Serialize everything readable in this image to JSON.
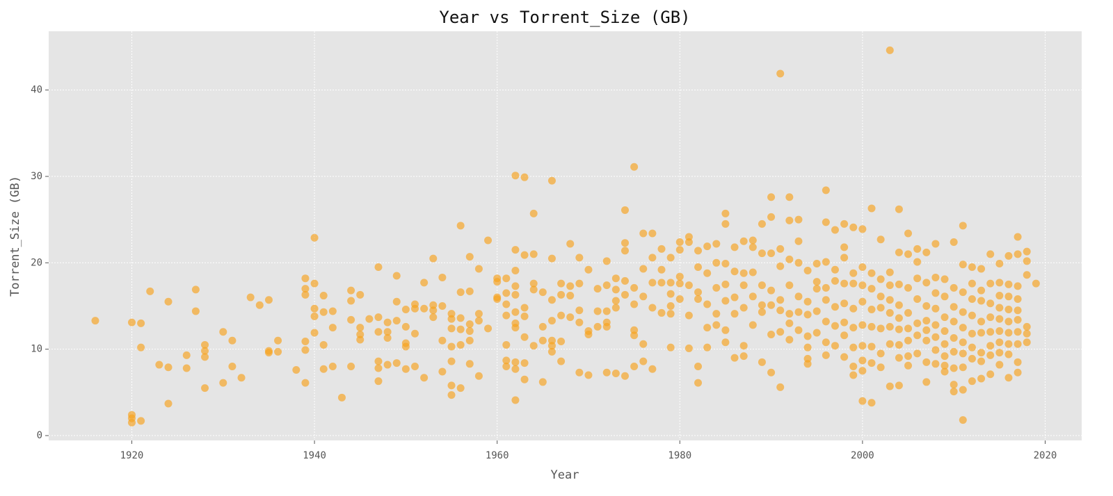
{
  "chart_data": {
    "type": "scatter",
    "title": "Year vs Torrent_Size (GB)",
    "x_label": "Year",
    "y_label": "Torrent_Size (GB)",
    "color": "#f7a21b",
    "grid": true,
    "xlim": [
      1910.9,
      2024.0
    ],
    "ylim": [
      -0.56,
      46.8
    ],
    "xticks": [
      1920,
      1940,
      1960,
      1980,
      2000,
      2020
    ],
    "yticks": [
      0,
      10,
      20,
      30,
      40
    ],
    "x": [
      1916,
      1920,
      1920,
      1920,
      1920,
      1921,
      1921,
      1921,
      1922,
      1923,
      1924,
      1924,
      1924,
      1926,
      1926,
      1927,
      1927,
      1928,
      1928,
      1928,
      1928,
      1930,
      1930,
      1931,
      1931,
      1932,
      1933,
      1934,
      1935,
      1935,
      1935,
      1936,
      1936,
      1938,
      1939,
      1939,
      1939,
      1939,
      1939,
      1939,
      1940,
      1940,
      1940,
      1940,
      1940,
      1941,
      1941,
      1941,
      1941,
      1942,
      1942,
      1942,
      1943,
      1944,
      1944,
      1944,
      1944,
      1945,
      1945,
      1945,
      1945,
      1946,
      1947,
      1947,
      1947,
      1947,
      1947,
      1947,
      1948,
      1948,
      1948,
      1948,
      1949,
      1949,
      1949,
      1949,
      1950,
      1950,
      1950,
      1950,
      1950,
      1951,
      1951,
      1951,
      1951,
      1952,
      1952,
      1952,
      1953,
      1953,
      1953,
      1953,
      1954,
      1954,
      1954,
      1954,
      1955,
      1955,
      1955,
      1955,
      1955,
      1955,
      1955,
      1956,
      1956,
      1956,
      1956,
      1956,
      1956,
      1957,
      1957,
      1957,
      1957,
      1957,
      1957,
      1958,
      1958,
      1958,
      1958,
      1959,
      1959,
      1960,
      1960,
      1960,
      1960,
      1961,
      1961,
      1961,
      1961,
      1961,
      1961,
      1961,
      1962,
      1962,
      1962,
      1962,
      1962,
      1962,
      1962,
      1962,
      1962,
      1962,
      1962,
      1963,
      1963,
      1963,
      1963,
      1963,
      1963,
      1963,
      1964,
      1964,
      1964,
      1964,
      1964,
      1965,
      1965,
      1965,
      1965,
      1966,
      1966,
      1966,
      1966,
      1966,
      1966,
      1966,
      1967,
      1967,
      1967,
      1967,
      1967,
      1968,
      1968,
      1968,
      1968,
      1969,
      1969,
      1969,
      1969,
      1969,
      1970,
      1970,
      1970,
      1970,
      1971,
      1971,
      1971,
      1972,
      1972,
      1972,
      1972,
      1972,
      1972,
      1973,
      1973,
      1973,
      1973,
      1973,
      1974,
      1974,
      1974,
      1974,
      1974,
      1974,
      1975,
      1975,
      1975,
      1975,
      1975,
      1975,
      1976,
      1976,
      1976,
      1976,
      1976,
      1977,
      1977,
      1977,
      1977,
      1977,
      1978,
      1978,
      1978,
      1978,
      1979,
      1979,
      1979,
      1979,
      1979,
      1979,
      1980,
      1980,
      1980,
      1980,
      1980,
      1981,
      1981,
      1981,
      1981,
      1981,
      1982,
      1982,
      1982,
      1982,
      1982,
      1982,
      1983,
      1983,
      1983,
      1983,
      1983,
      1984,
      1984,
      1984,
      1984,
      1984,
      1985,
      1985,
      1985,
      1985,
      1985,
      1985,
      1985,
      1986,
      1986,
      1986,
      1986,
      1986,
      1987,
      1987,
      1987,
      1987,
      1987,
      1987,
      1988,
      1988,
      1988,
      1988,
      1988,
      1989,
      1989,
      1989,
      1989,
      1989,
      1989,
      1990,
      1990,
      1990,
      1990,
      1990,
      1990,
      1990,
      1991,
      1991,
      1991,
      1991,
      1991,
      1991,
      1991,
      1992,
      1992,
      1992,
      1992,
      1992,
      1992,
      1992,
      1993,
      1993,
      1993,
      1993,
      1993,
      1993,
      1994,
      1994,
      1994,
      1994,
      1994,
      1994,
      1994,
      1995,
      1995,
      1995,
      1995,
      1995,
      1996,
      1996,
      1996,
      1996,
      1996,
      1996,
      1996,
      1996,
      1997,
      1997,
      1997,
      1997,
      1997,
      1997,
      1998,
      1998,
      1998,
      1998,
      1998,
      1998,
      1998,
      1998,
      1999,
      1999,
      1999,
      1999,
      1999,
      1999,
      1999,
      1999,
      2000,
      2000,
      2000,
      2000,
      2000,
      2000,
      2000,
      2000,
      2000,
      2001,
      2001,
      2001,
      2001,
      2001,
      2001,
      2001,
      2001,
      2002,
      2002,
      2002,
      2002,
      2002,
      2002,
      2002,
      2003,
      2003,
      2003,
      2003,
      2003,
      2003,
      2003,
      2003,
      2004,
      2004,
      2004,
      2004,
      2004,
      2004,
      2004,
      2004,
      2004,
      2005,
      2005,
      2005,
      2005,
      2005,
      2005,
      2005,
      2005,
      2006,
      2006,
      2006,
      2006,
      2006,
      2006,
      2006,
      2007,
      2007,
      2007,
      2007,
      2007,
      2007,
      2007,
      2007,
      2008,
      2008,
      2008,
      2008,
      2008,
      2008,
      2008,
      2008,
      2009,
      2009,
      2009,
      2009,
      2009,
      2009,
      2009,
      2009,
      2010,
      2010,
      2010,
      2010,
      2010,
      2010,
      2010,
      2010,
      2010,
      2011,
      2011,
      2011,
      2011,
      2011,
      2011,
      2011,
      2011,
      2011,
      2011,
      2012,
      2012,
      2012,
      2012,
      2012,
      2012,
      2012,
      2012,
      2013,
      2013,
      2013,
      2013,
      2013,
      2013,
      2013,
      2013,
      2014,
      2014,
      2014,
      2014,
      2014,
      2014,
      2014,
      2014,
      2015,
      2015,
      2015,
      2015,
      2015,
      2015,
      2015,
      2015,
      2015,
      2016,
      2016,
      2016,
      2016,
      2016,
      2016,
      2016,
      2016,
      2016,
      2017,
      2017,
      2017,
      2017,
      2017,
      2017,
      2017,
      2017,
      2017,
      2017,
      2018,
      2018,
      2018,
      2018,
      2018,
      2018,
      2019
    ],
    "values": [
      13.3,
      13.1,
      2.4,
      2.0,
      1.5,
      13.0,
      10.2,
      1.7,
      16.7,
      8.2,
      15.5,
      7.9,
      3.7,
      9.3,
      7.8,
      16.9,
      14.4,
      10.5,
      9.8,
      9.1,
      5.5,
      12.0,
      6.1,
      11.0,
      8.0,
      6.7,
      16.0,
      15.1,
      15.7,
      9.8,
      9.6,
      11.0,
      9.7,
      7.6,
      18.2,
      17.0,
      16.3,
      10.9,
      9.9,
      6.1,
      22.9,
      17.6,
      14.7,
      13.8,
      11.9,
      16.2,
      14.3,
      10.5,
      7.7,
      14.4,
      12.5,
      8.0,
      4.4,
      16.8,
      15.6,
      13.4,
      8.0,
      16.3,
      12.5,
      11.7,
      11.1,
      13.5,
      19.5,
      13.7,
      12.0,
      8.6,
      7.8,
      6.3,
      13.1,
      12.0,
      11.3,
      8.2,
      18.5,
      15.5,
      13.3,
      8.4,
      14.6,
      12.6,
      10.7,
      10.3,
      7.7,
      15.2,
      14.7,
      11.8,
      8.0,
      17.7,
      14.7,
      6.7,
      20.5,
      15.1,
      14.5,
      13.7,
      18.3,
      15.0,
      11.0,
      7.4,
      14.1,
      13.5,
      12.4,
      10.3,
      8.6,
      5.8,
      4.7,
      24.3,
      16.6,
      13.6,
      12.3,
      10.5,
      5.5,
      20.7,
      16.7,
      12.9,
      12.1,
      11.0,
      8.3,
      19.3,
      14.1,
      13.3,
      6.9,
      22.6,
      12.4,
      18.2,
      17.8,
      16.0,
      15.8,
      18.2,
      16.5,
      15.2,
      13.9,
      10.5,
      8.7,
      8.0,
      30.1,
      21.5,
      19.1,
      17.3,
      16.3,
      14.3,
      13.0,
      12.5,
      8.5,
      7.7,
      4.1,
      29.9,
      20.9,
      14.8,
      13.8,
      11.4,
      8.4,
      6.5,
      25.7,
      21.0,
      17.6,
      16.9,
      10.4,
      16.6,
      12.6,
      11.0,
      6.2,
      29.5,
      20.5,
      15.7,
      13.3,
      11.0,
      10.4,
      9.7,
      17.6,
      16.3,
      13.9,
      10.9,
      8.6,
      22.2,
      17.3,
      16.2,
      13.7,
      20.6,
      17.6,
      14.5,
      13.1,
      7.3,
      19.2,
      12.1,
      11.7,
      7.0,
      17.0,
      14.4,
      12.6,
      20.2,
      17.4,
      14.4,
      13.1,
      12.6,
      7.3,
      18.2,
      16.9,
      15.6,
      14.8,
      7.2,
      26.1,
      22.3,
      21.4,
      17.9,
      16.3,
      6.9,
      31.1,
      17.1,
      15.2,
      12.2,
      11.6,
      8.0,
      23.4,
      19.3,
      16.1,
      10.6,
      8.6,
      23.4,
      20.6,
      17.7,
      14.8,
      7.7,
      21.6,
      19.2,
      17.7,
      14.2,
      20.6,
      17.7,
      16.4,
      15.0,
      14.1,
      10.2,
      22.4,
      21.5,
      18.4,
      17.6,
      15.8,
      23.0,
      22.4,
      17.4,
      13.9,
      10.1,
      21.4,
      19.5,
      16.6,
      15.8,
      8.0,
      6.1,
      21.9,
      18.8,
      15.2,
      12.5,
      10.2,
      22.2,
      20.0,
      17.1,
      14.1,
      12.8,
      25.7,
      24.5,
      19.9,
      17.5,
      15.6,
      12.2,
      10.8,
      21.8,
      19.0,
      16.0,
      14.1,
      9.0,
      22.5,
      18.8,
      17.4,
      14.8,
      10.4,
      9.2,
      22.6,
      21.8,
      18.9,
      16.1,
      12.8,
      24.5,
      21.1,
      17.4,
      15.1,
      14.3,
      8.5,
      27.6,
      25.3,
      21.1,
      16.8,
      15.1,
      11.7,
      7.3,
      41.9,
      21.6,
      19.6,
      15.7,
      14.5,
      12.0,
      5.6,
      27.6,
      24.9,
      20.4,
      17.4,
      14.1,
      13.0,
      11.1,
      25.0,
      22.5,
      20.0,
      16.1,
      14.3,
      12.2,
      19.1,
      15.5,
      14.0,
      11.5,
      10.2,
      8.9,
      8.3,
      19.9,
      17.8,
      17.0,
      14.4,
      11.9,
      28.4,
      24.7,
      20.1,
      17.1,
      15.7,
      13.2,
      10.8,
      9.3,
      23.8,
      19.2,
      17.9,
      14.9,
      12.7,
      10.4,
      24.5,
      21.8,
      20.6,
      17.6,
      15.3,
      13.1,
      11.6,
      9.1,
      24.1,
      18.8,
      17.6,
      14.7,
      12.5,
      10.2,
      8.0,
      7.0,
      23.9,
      19.5,
      17.4,
      15.5,
      12.8,
      10.4,
      8.7,
      7.5,
      4.0,
      26.3,
      18.8,
      17.0,
      14.6,
      12.6,
      10.3,
      8.4,
      3.8,
      22.7,
      18.1,
      16.1,
      14.8,
      12.4,
      9.5,
      7.9,
      44.6,
      18.9,
      17.4,
      15.7,
      14.2,
      12.6,
      10.6,
      5.7,
      26.2,
      21.2,
      17.5,
      15.1,
      13.6,
      12.3,
      10.5,
      9.0,
      5.8,
      23.4,
      21.0,
      17.1,
      14.2,
      12.4,
      11.0,
      9.2,
      8.1,
      21.6,
      20.1,
      18.2,
      15.8,
      13.0,
      11.6,
      9.5,
      21.2,
      17.7,
      15.0,
      13.3,
      12.2,
      11.0,
      8.5,
      6.2,
      22.2,
      18.3,
      16.5,
      14.7,
      12.8,
      11.4,
      9.9,
      8.3,
      18.1,
      16.1,
      13.7,
      12.1,
      10.6,
      9.2,
      8.1,
      7.4,
      22.4,
      17.1,
      14.9,
      13.2,
      11.3,
      9.7,
      7.8,
      5.9,
      5.1,
      24.3,
      19.8,
      16.6,
      14.3,
      12.5,
      10.8,
      9.5,
      7.9,
      5.3,
      1.8,
      19.5,
      17.6,
      15.8,
      13.9,
      11.8,
      10.2,
      8.9,
      6.3,
      19.3,
      16.8,
      15.6,
      13.2,
      11.9,
      9.6,
      8.6,
      6.6,
      21.0,
      17.6,
      15.3,
      13.7,
      12.0,
      10.4,
      9.3,
      7.1,
      19.9,
      17.7,
      16.2,
      14.8,
      13.5,
      12.1,
      10.8,
      9.6,
      8.2,
      20.8,
      17.5,
      16.1,
      14.6,
      13.2,
      11.9,
      10.6,
      9.4,
      6.7,
      23.0,
      21.0,
      17.3,
      15.8,
      14.5,
      13.4,
      12.0,
      10.6,
      8.5,
      7.3,
      21.3,
      20.2,
      18.6,
      12.6,
      11.8,
      10.8,
      17.6
    ]
  }
}
